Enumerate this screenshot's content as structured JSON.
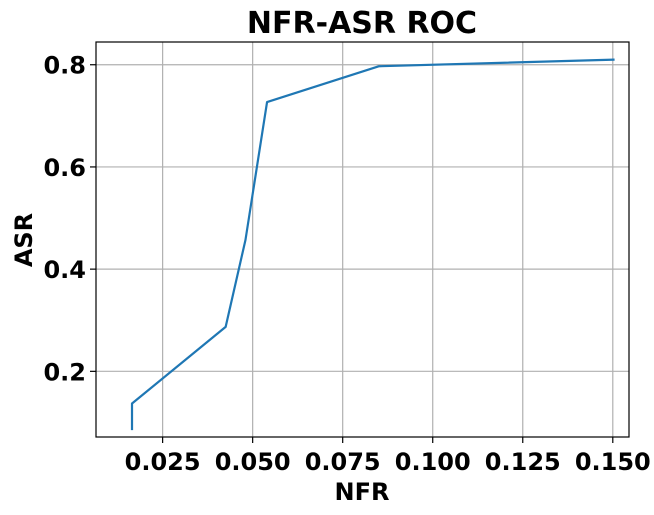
{
  "chart_data": {
    "type": "line",
    "title": "NFR-ASR ROC",
    "xlabel": "NFR",
    "ylabel": "ASR",
    "xlim": [
      0.0065,
      0.1545
    ],
    "ylim": [
      0.0715,
      0.8445
    ],
    "xticks": [
      0.025,
      0.05,
      0.075,
      0.1,
      0.125,
      0.15
    ],
    "xtick_labels": [
      "0.025",
      "0.050",
      "0.075",
      "0.100",
      "0.125",
      "0.150"
    ],
    "yticks": [
      0.2,
      0.4,
      0.6,
      0.8
    ],
    "ytick_labels": [
      "0.2",
      "0.4",
      "0.6",
      "0.8"
    ],
    "grid": true,
    "series": [
      {
        "color": "#1f77b4",
        "x": [
          0.0165,
          0.0165,
          0.0425,
          0.048,
          0.054,
          0.085,
          0.1505
        ],
        "y": [
          0.085,
          0.137,
          0.287,
          0.457,
          0.727,
          0.797,
          0.81
        ]
      }
    ]
  }
}
